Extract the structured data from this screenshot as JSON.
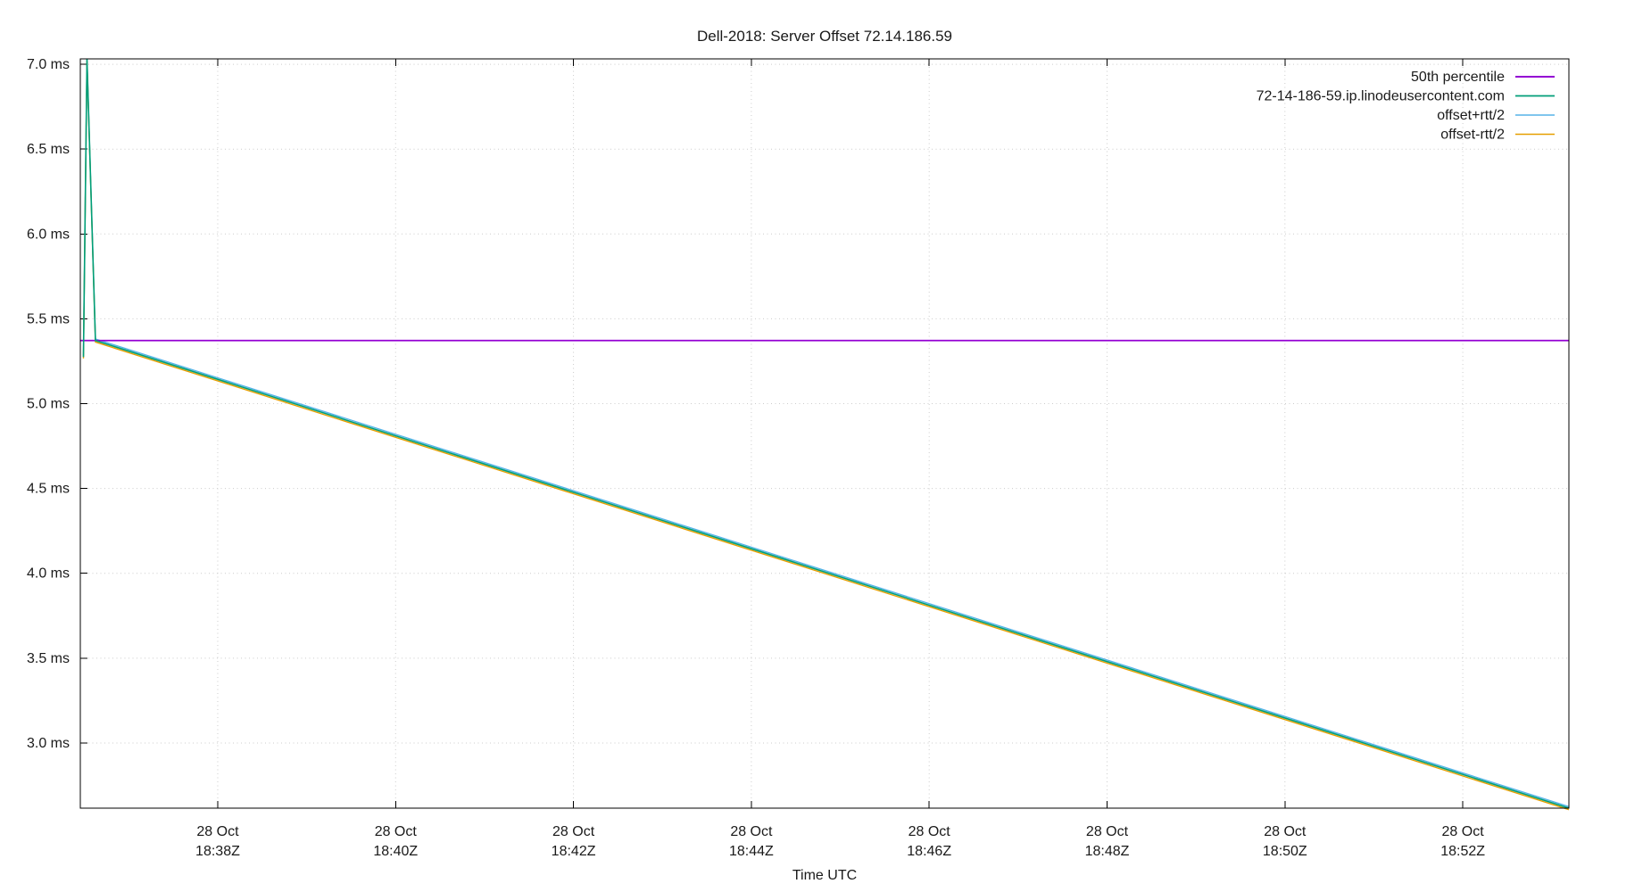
{
  "title": "Dell-2018: Server Offset 72.14.186.59",
  "chart_data": {
    "type": "line",
    "title": "Dell-2018: Server Offset 72.14.186.59",
    "xlabel": "Time UTC",
    "ylabel": "",
    "x_unit": "minutes after 18:00 UTC on 28 Oct",
    "x_domain": [
      36.455,
      53.193
    ],
    "y_domain": [
      2.616,
      7.032
    ],
    "grid": true,
    "legend_position": "top-right-inside",
    "x_ticks": [
      {
        "value": 38,
        "date": "28 Oct",
        "time": "18:38Z"
      },
      {
        "value": 40,
        "date": "28 Oct",
        "time": "18:40Z"
      },
      {
        "value": 42,
        "date": "28 Oct",
        "time": "18:42Z"
      },
      {
        "value": 44,
        "date": "28 Oct",
        "time": "18:44Z"
      },
      {
        "value": 46,
        "date": "28 Oct",
        "time": "18:46Z"
      },
      {
        "value": 48,
        "date": "28 Oct",
        "time": "18:48Z"
      },
      {
        "value": 50,
        "date": "28 Oct",
        "time": "18:50Z"
      },
      {
        "value": 52,
        "date": "28 Oct",
        "time": "18:52Z"
      }
    ],
    "y_ticks": [
      {
        "value": 7.0,
        "label": "7.0 ms"
      },
      {
        "value": 6.5,
        "label": "6.5 ms"
      },
      {
        "value": 6.0,
        "label": "6.0 ms"
      },
      {
        "value": 5.5,
        "label": "5.5 ms"
      },
      {
        "value": 5.0,
        "label": "5.0 ms"
      },
      {
        "value": 4.5,
        "label": "4.5 ms"
      },
      {
        "value": 4.0,
        "label": "4.0 ms"
      },
      {
        "value": 3.5,
        "label": "3.5 ms"
      },
      {
        "value": 3.0,
        "label": "3.0 ms"
      }
    ],
    "series": [
      {
        "name": "50th percentile",
        "color": "#9400d3",
        "width": 1.8,
        "points": [
          [
            36.455,
            5.372
          ],
          [
            53.193,
            5.372
          ]
        ]
      },
      {
        "name": "72-14-186-59.ip.linodeusercontent.com",
        "color": "#009e78",
        "width": 1.6,
        "points": [
          [
            36.49,
            5.275
          ],
          [
            36.53,
            7.03
          ],
          [
            36.625,
            5.372
          ],
          [
            53.193,
            2.616
          ]
        ]
      },
      {
        "name": "offset+rtt/2",
        "color": "#56b4e9",
        "width": 1.4,
        "points": [
          [
            36.49,
            5.284
          ],
          [
            36.53,
            7.032
          ],
          [
            36.625,
            5.381
          ],
          [
            53.193,
            2.625
          ]
        ]
      },
      {
        "name": "offset-rtt/2",
        "color": "#e69f00",
        "width": 1.4,
        "points": [
          [
            36.49,
            5.266
          ],
          [
            36.53,
            7.021
          ],
          [
            36.625,
            5.363
          ],
          [
            53.193,
            2.607
          ]
        ]
      }
    ],
    "draw_order": [
      2,
      3,
      0,
      1
    ],
    "colors": {
      "grid": "#cccccc",
      "axis": "#000000",
      "text": "#1a1a1a",
      "background": "#ffffff"
    }
  }
}
